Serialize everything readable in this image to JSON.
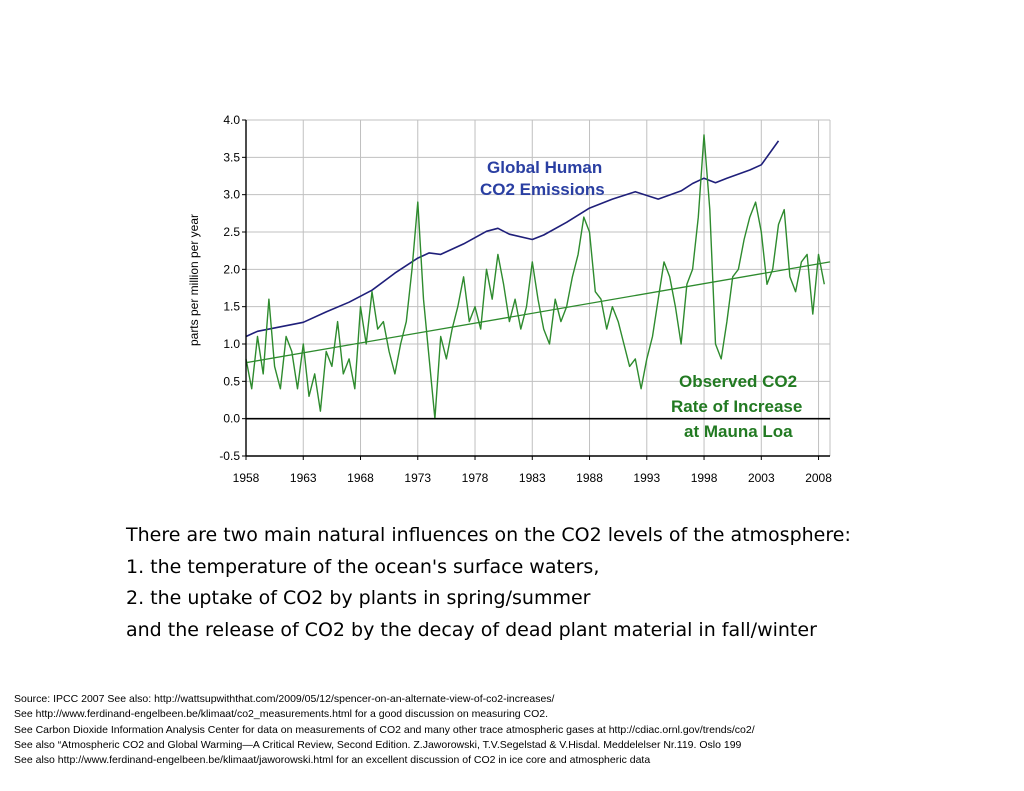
{
  "chart_data": {
    "type": "line",
    "ylabel": "parts per million per year",
    "xlabel": "",
    "x_ticks": [
      "1958",
      "1963",
      "1968",
      "1973",
      "1978",
      "1983",
      "1988",
      "1993",
      "1998",
      "2003",
      "2008"
    ],
    "y_ticks": [
      "4.0",
      "3.5",
      "3.0",
      "2.5",
      "2.0",
      "1.5",
      "1.0",
      "0.5",
      "0.0",
      "-0.5"
    ],
    "xlim": [
      1958,
      2009
    ],
    "ylim": [
      -0.5,
      4.0
    ],
    "grid": true,
    "colors": {
      "emissions": "#1f1f7a",
      "rate": "#2e8b2e",
      "trend": "#2e8b2e",
      "grid": "#c0c0c0"
    },
    "annotations": {
      "emissions_line1": "Global Human",
      "emissions_line2": "CO2 Emissions",
      "rate_line1": "Observed CO2",
      "rate_line2": "Rate of Increase",
      "rate_line3": "at Mauna Loa"
    },
    "series": [
      {
        "key": "emissions",
        "x": [
          1958,
          1959,
          1961,
          1963,
          1965,
          1967,
          1969,
          1971,
          1973,
          1974,
          1975,
          1977,
          1979,
          1980,
          1981,
          1983,
          1984,
          1986,
          1988,
          1990,
          1992,
          1994,
          1996,
          1997,
          1998,
          1999,
          2000,
          2002,
          2003,
          2004.5
        ],
        "values": [
          1.1,
          1.17,
          1.23,
          1.29,
          1.43,
          1.56,
          1.72,
          1.95,
          2.15,
          2.22,
          2.2,
          2.34,
          2.51,
          2.55,
          2.47,
          2.4,
          2.46,
          2.63,
          2.82,
          2.94,
          3.04,
          2.94,
          3.05,
          3.15,
          3.22,
          3.16,
          3.22,
          3.33,
          3.4,
          3.72
        ]
      },
      {
        "key": "rate",
        "x": [
          1958,
          1958.5,
          1959,
          1959.5,
          1960,
          1960.5,
          1961,
          1961.5,
          1962,
          1962.5,
          1963,
          1963.5,
          1964,
          1964.5,
          1965,
          1965.5,
          1966,
          1966.5,
          1967,
          1967.5,
          1968,
          1968.5,
          1969,
          1969.5,
          1970,
          1970.5,
          1971,
          1971.5,
          1972,
          1972.5,
          1973,
          1973.5,
          1974,
          1974.5,
          1975,
          1975.5,
          1976,
          1976.5,
          1977,
          1977.5,
          1978,
          1978.5,
          1979,
          1979.5,
          1980,
          1980.5,
          1981,
          1981.5,
          1982,
          1982.5,
          1983,
          1983.5,
          1984,
          1984.5,
          1985,
          1985.5,
          1986,
          1986.5,
          1987,
          1987.5,
          1988,
          1988.5,
          1989,
          1989.5,
          1990,
          1990.5,
          1991,
          1991.5,
          1992,
          1992.5,
          1993,
          1993.5,
          1994,
          1994.5,
          1995,
          1995.5,
          1996,
          1996.5,
          1997,
          1997.5,
          1998,
          1998.5,
          1999,
          1999.5,
          2000,
          2000.5,
          2001,
          2001.5,
          2002,
          2002.5,
          2003,
          2003.5,
          2004,
          2004.5,
          2005,
          2005.5,
          2006,
          2006.5,
          2007,
          2007.5,
          2008,
          2008.5
        ],
        "values": [
          0.8,
          0.4,
          1.1,
          0.6,
          1.6,
          0.7,
          0.4,
          1.1,
          0.9,
          0.4,
          1.0,
          0.3,
          0.6,
          0.1,
          0.9,
          0.7,
          1.3,
          0.6,
          0.8,
          0.4,
          1.5,
          1.0,
          1.7,
          1.2,
          1.3,
          0.9,
          0.6,
          1.0,
          1.3,
          2.0,
          2.9,
          1.6,
          0.8,
          0.0,
          1.1,
          0.8,
          1.2,
          1.5,
          1.9,
          1.3,
          1.5,
          1.2,
          2.0,
          1.6,
          2.2,
          1.8,
          1.3,
          1.6,
          1.2,
          1.5,
          2.1,
          1.6,
          1.2,
          1.0,
          1.6,
          1.3,
          1.5,
          1.9,
          2.2,
          2.7,
          2.5,
          1.7,
          1.6,
          1.2,
          1.5,
          1.3,
          1.0,
          0.7,
          0.8,
          0.4,
          0.8,
          1.1,
          1.6,
          2.1,
          1.9,
          1.5,
          1.0,
          1.8,
          2.0,
          2.7,
          3.8,
          2.8,
          1.0,
          0.8,
          1.3,
          1.9,
          2.0,
          2.4,
          2.7,
          2.9,
          2.5,
          1.8,
          2.0,
          2.6,
          2.8,
          1.9,
          1.7,
          2.1,
          2.2,
          1.4,
          2.2,
          1.8
        ]
      },
      {
        "key": "trend",
        "x": [
          1958,
          2009
        ],
        "values": [
          0.75,
          2.1
        ]
      }
    ]
  },
  "notes": [
    "There are two main natural influences on the CO2 levels of the atmosphere:",
    "1. the temperature of the ocean's surface waters,",
    "2. the uptake of CO2 by plants in spring/summer",
    "and the release of CO2 by the decay of dead plant material in fall/winter"
  ],
  "sources": [
    "Source: IPCC 2007    See also: http://wattsupwiththat.com/2009/05/12/spencer-on-an-alternate-view-of-co2-increases/",
    "See   http://www.ferdinand-engelbeen.be/klimaat/co2_measurements.html  for a good discussion on measuring CO2.",
    "See   Carbon Dioxide Information Analysis Center for data on measurements of CO2 and many other trace atmospheric gases at  http://cdiac.ornl.gov/trends/co2/",
    "See also “Atmospheric CO2 and Global Warming—A Critical Review, Second Edition. Z.Jaworowski, T.V.Segelstad & V.Hisdal. Meddelelser Nr.119. Oslo 199",
    "See also http://www.ferdinand-engelbeen.be/klimaat/jaworowski.html for an excellent discussion of CO2 in ice core and atmospheric data"
  ]
}
